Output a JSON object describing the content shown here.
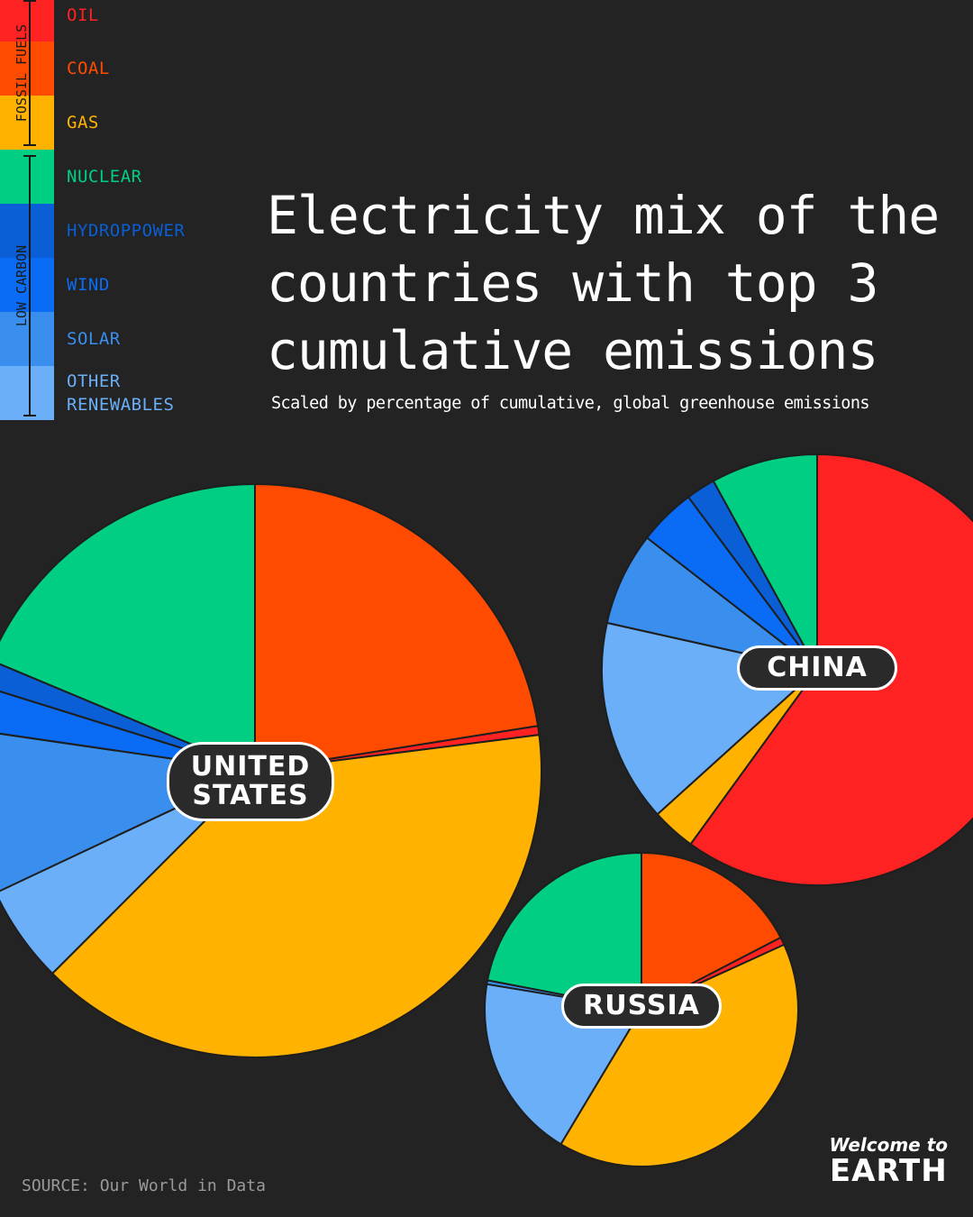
{
  "title": "Electricity mix of the countries with top 3 cumulative emissions",
  "subtitle": "Scaled by percentage of cumulative, global greenhouse emissions",
  "source": "SOURCE: Our World in Data",
  "brand": {
    "top": "Welcome to",
    "bottom": "EARTH"
  },
  "legend": {
    "groups": [
      {
        "name": "FOSSIL FUELS"
      },
      {
        "name": "LOW CARBON"
      }
    ],
    "items": [
      {
        "key": "oil",
        "label": "OIL",
        "color": "#ff2222"
      },
      {
        "key": "coal",
        "label": "COAL",
        "color": "#ff4b00"
      },
      {
        "key": "gas",
        "label": "GAS",
        "color": "#ffb300"
      },
      {
        "key": "nuclear",
        "label": "NUCLEAR",
        "color": "#00cf83"
      },
      {
        "key": "hydropower",
        "label": "HYDROPPOWER",
        "color": "#0a5fd6"
      },
      {
        "key": "wind",
        "label": "WIND",
        "color": "#0a6cf5"
      },
      {
        "key": "solar",
        "label": "SOLAR",
        "color": "#3a8fee"
      },
      {
        "key": "other_renewables",
        "label": "OTHER\nRENEWABLES",
        "color": "#6aaff8"
      }
    ]
  },
  "chart_data": {
    "type": "pie",
    "title": "Electricity mix of the countries with top 3 cumulative emissions",
    "subtitle": "Scaled by percentage of cumulative, global greenhouse emissions",
    "categories": [
      "Oil",
      "Coal",
      "Gas",
      "Nuclear",
      "Hydropower",
      "Wind",
      "Solar",
      "Other renewables"
    ],
    "pies": [
      {
        "name": "UNITED STATES",
        "label_lines": [
          "UNITED",
          "STATES"
        ],
        "slices": [
          {
            "category": "coal",
            "value": 22.5
          },
          {
            "category": "oil",
            "value": 0.5
          },
          {
            "category": "gas",
            "value": 39.5
          },
          {
            "category": "other_renewables",
            "value": 5.5
          },
          {
            "category": "solar",
            "value": 9.3
          },
          {
            "category": "wind",
            "value": 2.5
          },
          {
            "category": "hydropower",
            "value": 1.5
          },
          {
            "category": "nuclear",
            "value": 18.7
          }
        ]
      },
      {
        "name": "CHINA",
        "label_lines": [
          "CHINA"
        ],
        "slices": [
          {
            "category": "oil",
            "value": 60.0
          },
          {
            "category": "gas",
            "value": 3.3
          },
          {
            "category": "other_renewables",
            "value": 15.2
          },
          {
            "category": "solar",
            "value": 7.0
          },
          {
            "category": "wind",
            "value": 4.3
          },
          {
            "category": "hydropower",
            "value": 2.2
          },
          {
            "category": "nuclear",
            "value": 8.0
          }
        ]
      },
      {
        "name": "RUSSIA",
        "label_lines": [
          "RUSSIA"
        ],
        "slices": [
          {
            "category": "coal",
            "value": 17.4
          },
          {
            "category": "oil",
            "value": 0.8
          },
          {
            "category": "gas",
            "value": 40.4
          },
          {
            "category": "other_renewables",
            "value": 19.0
          },
          {
            "category": "solar",
            "value": 0.4
          },
          {
            "category": "nuclear",
            "value": 22.0
          }
        ]
      }
    ],
    "legend_placement": "top-left"
  }
}
